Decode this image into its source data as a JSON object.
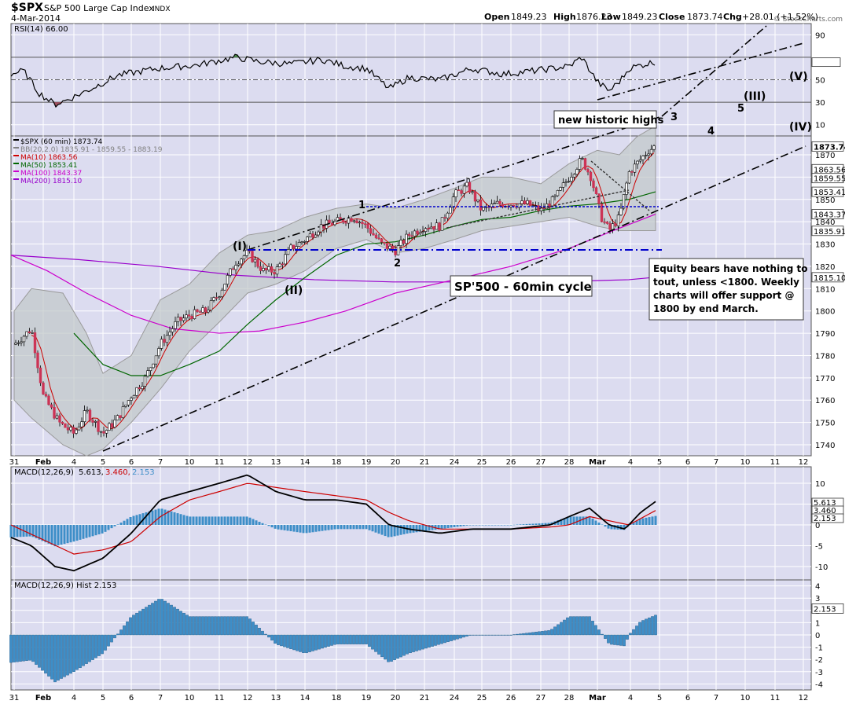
{
  "header": {
    "symbol": "$SPX",
    "name": "S&P 500 Large Cap Index",
    "exchange": "INDX",
    "date": "4-Mar-2014",
    "open_label": "Open",
    "open": "1849.23",
    "high_label": "High",
    "high": "1876.23",
    "low_label": "Low",
    "low": "1849.23",
    "close_label": "Close",
    "close": "1873.74",
    "chg_label": "Chg",
    "chg": "+28.01 (+1.52%)",
    "watermark": "© StockCharts.com"
  },
  "rsi_panel": {
    "label": "RSI(14) 66.00",
    "ticks": [
      "90",
      "66.00",
      "50",
      "30",
      "10"
    ],
    "levels": [
      90,
      66,
      50,
      30,
      10
    ]
  },
  "price_panel": {
    "legend": [
      {
        "text": "$SPX (60 min) 1873.74",
        "color": "#000000"
      },
      {
        "text": "BB(20,2.0) 1835.91 - 1859.55 - 1883.19",
        "color": "#808080"
      },
      {
        "text": "MA(10) 1863.56",
        "color": "#cc0000"
      },
      {
        "text": "MA(50) 1853.41",
        "color": "#006600"
      },
      {
        "text": "MA(100) 1843.37",
        "color": "#cc00cc"
      },
      {
        "text": "MA(200) 1815.10",
        "color": "#9900cc"
      }
    ],
    "ticks": [
      "1870",
      "1860",
      "1850",
      "1840",
      "1830",
      "1820",
      "1810",
      "1800",
      "1790",
      "1780",
      "1770",
      "1760",
      "1750",
      "1740"
    ],
    "tick_values": [
      1870,
      1860,
      1850,
      1840,
      1830,
      1820,
      1810,
      1800,
      1790,
      1780,
      1770,
      1760,
      1750,
      1740
    ],
    "badges": [
      {
        "text": "1873.74",
        "value": 1873.74,
        "bold": true
      },
      {
        "text": "1863.56",
        "value": 1863.56,
        "bold": false
      },
      {
        "text": "1859.55",
        "value": 1859.55,
        "bold": false
      },
      {
        "text": "1853.41",
        "value": 1853.41,
        "bold": false
      },
      {
        "text": "1843.37",
        "value": 1843.37,
        "bold": false
      },
      {
        "text": "1835.91",
        "value": 1835.91,
        "bold": false
      },
      {
        "text": "1815.10",
        "value": 1815.1,
        "bold": false
      }
    ]
  },
  "annotations": {
    "new_highs": "new historic highs",
    "cycle": "SP'500 - 60min cycle",
    "comment_lines": [
      "Equity bears have nothing to",
      "tout, unless <1800. Weekly",
      "charts will offer support @",
      "1800 by end March."
    ],
    "waves": {
      "I": "(I)",
      "II": "(II)",
      "III": "(III)",
      "IV": "(IV)",
      "V": "(V)"
    },
    "minor": {
      "one": "1",
      "two": "2",
      "three": "3",
      "four": "4",
      "five": "5"
    }
  },
  "macd_panel": {
    "label_name": "MACD(12,26,9)",
    "label_macd": "5.613,",
    "label_signal": "3.460,",
    "label_hist": "2.153",
    "ticks": [
      "10",
      "5",
      "0",
      "-5",
      "-10"
    ],
    "tick_values": [
      10,
      5,
      0,
      -5,
      -10
    ],
    "badges": [
      {
        "text": "5.613",
        "value": 5.613
      },
      {
        "text": "3.460",
        "value": 3.46
      },
      {
        "text": "2.153",
        "value": 2.153
      }
    ]
  },
  "hist_panel": {
    "label": "MACD(12,26,9) Hist 2.153",
    "ticks": [
      "4",
      "3",
      "2",
      "1",
      "0",
      "-1",
      "-2",
      "-3",
      "-4"
    ],
    "tick_values": [
      4,
      3,
      2,
      1,
      0,
      -1,
      -2,
      -3,
      -4
    ],
    "badge": {
      "text": "2.153",
      "value": 2.153
    }
  },
  "x_axis": {
    "labels": [
      "31",
      "Feb",
      "4",
      "5",
      "6",
      "7",
      "10",
      "11",
      "12",
      "13",
      "14",
      "18",
      "19",
      "20",
      "21",
      "24",
      "25",
      "26",
      "27",
      "28",
      "Mar",
      "4",
      "5",
      "6",
      "7",
      "10",
      "11",
      "12"
    ]
  },
  "chart_data": {
    "type": "candlestick",
    "title": "$SPX S&P 500 Large Cap Index INDX",
    "timeframe": "60 min",
    "x_dates": [
      "Jan 31",
      "Feb 3",
      "Feb 4",
      "Feb 5",
      "Feb 6",
      "Feb 7",
      "Feb 10",
      "Feb 11",
      "Feb 12",
      "Feb 13",
      "Feb 14",
      "Feb 18",
      "Feb 19",
      "Feb 20",
      "Feb 21",
      "Feb 24",
      "Feb 25",
      "Feb 26",
      "Feb 27",
      "Feb 28",
      "Mar 3",
      "Mar 4"
    ],
    "ylim": [
      1735,
      1880
    ],
    "daily_close_approx": [
      1782,
      1745,
      1752,
      1750,
      1772,
      1796,
      1798,
      1819,
      1820,
      1828,
      1838,
      1840,
      1830,
      1838,
      1836,
      1848,
      1845,
      1846,
      1853,
      1860,
      1845,
      1873.74
    ],
    "series": [
      {
        "name": "MA(10)",
        "last": 1863.56
      },
      {
        "name": "MA(50)",
        "last": 1853.41
      },
      {
        "name": "MA(100)",
        "last": 1843.37
      },
      {
        "name": "MA(200)",
        "last": 1815.1
      },
      {
        "name": "BB(20,2.0) lower",
        "last": 1835.91
      },
      {
        "name": "BB(20,2.0) mid",
        "last": 1859.55
      },
      {
        "name": "BB(20,2.0) upper",
        "last": 1883.19
      }
    ],
    "rsi_last": 66.0,
    "macd_last": 5.613,
    "macd_signal_last": 3.46,
    "macd_hist_last": 2.153
  },
  "colors": {
    "panel_bg": "#dcdcf0",
    "grid": "#ffffff",
    "up": "#ffffff",
    "down": "#cc3355",
    "ma10": "#cc0000",
    "ma50": "#006600",
    "ma100": "#cc00cc",
    "ma200": "#9900cc",
    "bb_fill": "#c0c8c8",
    "hist": "#3d8ec8"
  }
}
